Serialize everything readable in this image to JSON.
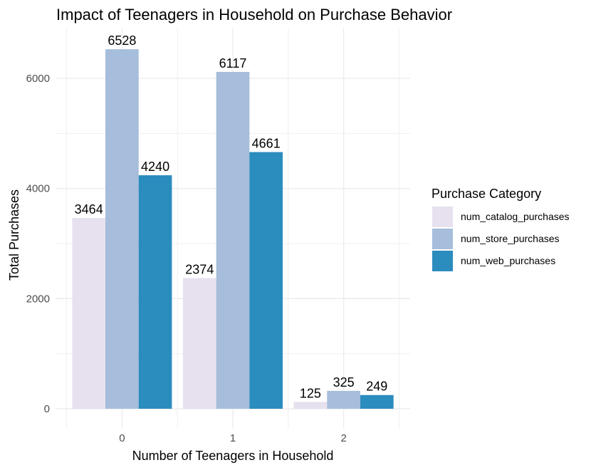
{
  "chart_data": {
    "type": "bar",
    "title": "Impact of Teenagers in Household on Purchase Behavior",
    "xlabel": "Number of Teenagers in Household",
    "ylabel": "Total Purchases",
    "categories": [
      "0",
      "1",
      "2"
    ],
    "series": [
      {
        "name": "num_catalog_purchases",
        "color": "#e7e1ef",
        "values": [
          3464,
          2374,
          125
        ]
      },
      {
        "name": "num_store_purchases",
        "color": "#a6bddb",
        "values": [
          6528,
          6117,
          325
        ]
      },
      {
        "name": "num_web_purchases",
        "color": "#2b8cbe",
        "values": [
          4240,
          4661,
          249
        ]
      }
    ],
    "y_ticks": [
      0,
      2000,
      4000,
      6000
    ],
    "y_minor_ticks": [
      1000,
      3000,
      5000
    ],
    "ylim": [
      -300,
      6850
    ],
    "grid": true,
    "legend": {
      "title": "Purchase Category",
      "position": "right"
    }
  }
}
